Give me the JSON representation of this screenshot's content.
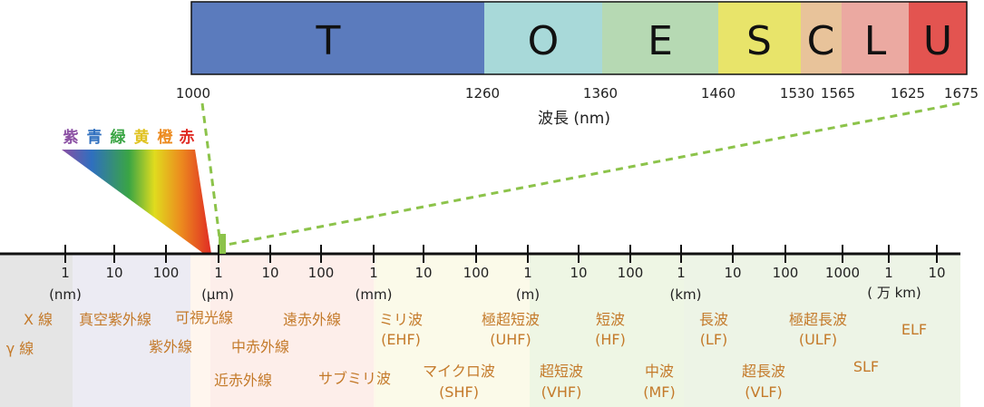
{
  "bands": [
    {
      "letter": "T",
      "color": "#5b7bbd"
    },
    {
      "letter": "O",
      "color": "#a8d9d9"
    },
    {
      "letter": "E",
      "color": "#b6d9b3"
    },
    {
      "letter": "S",
      "color": "#e8e46a"
    },
    {
      "letter": "C",
      "color": "#e8c39a"
    },
    {
      "letter": "L",
      "color": "#eba9a1"
    },
    {
      "letter": "U",
      "color": "#e35450"
    }
  ],
  "band_edges": [
    "1000",
    "1260",
    "1360",
    "1460",
    "1530",
    "1565",
    "1625",
    "1675"
  ],
  "wavelength_label": "波長 (nm)",
  "prism_colors": [
    {
      "char": "紫",
      "color": "#8a4fa3"
    },
    {
      "char": "青",
      "color": "#2f6fbf"
    },
    {
      "char": "緑",
      "color": "#3aa544"
    },
    {
      "char": "黄",
      "color": "#e0c21e"
    },
    {
      "char": "橙",
      "color": "#ec8a1e"
    },
    {
      "char": "赤",
      "color": "#e02b24"
    }
  ],
  "ticks": [
    "1",
    "10",
    "100",
    "1",
    "10",
    "100",
    "1",
    "10",
    "100",
    "1",
    "10",
    "100",
    "1",
    "10",
    "100",
    "1000",
    "1",
    "10"
  ],
  "units": [
    "(nm)",
    "(μm)",
    "(mm)",
    "(m)",
    "(km)",
    "( 万 km)"
  ],
  "region_bg": [
    "#e5e5e5",
    "#ecebf3",
    "#fff6ee",
    "#fdeeea",
    "#fdf7ea",
    "#fbfae9",
    "#eef6e4",
    "#edf4e6"
  ],
  "regions": {
    "xray": "X 線",
    "gamma": "γ 線",
    "vuv": "真空紫外線",
    "uv": "紫外線",
    "visible": "可視光線",
    "nir": "近赤外線",
    "mir": "中赤外線",
    "fir": "遠赤外線",
    "submm": "サブミリ波",
    "mm_name": "ミリ波",
    "mm_abbr": "(EHF)",
    "micro_name": "マイクロ波",
    "micro_abbr": "(SHF)",
    "uhf_name": "極超短波",
    "uhf_abbr": "(UHF)",
    "vhf_name": "超短波",
    "vhf_abbr": "(VHF)",
    "hf_name": "短波",
    "hf_abbr": "(HF)",
    "mf_name": "中波",
    "mf_abbr": "(MF)",
    "lf_name": "長波",
    "lf_abbr": "(LF)",
    "vlf_name": "超長波",
    "vlf_abbr": "(VLF)",
    "ulf_name": "極超長波",
    "ulf_abbr": "(ULF)",
    "slf": "SLF",
    "elf": "ELF"
  },
  "accent": "#8cc34a"
}
